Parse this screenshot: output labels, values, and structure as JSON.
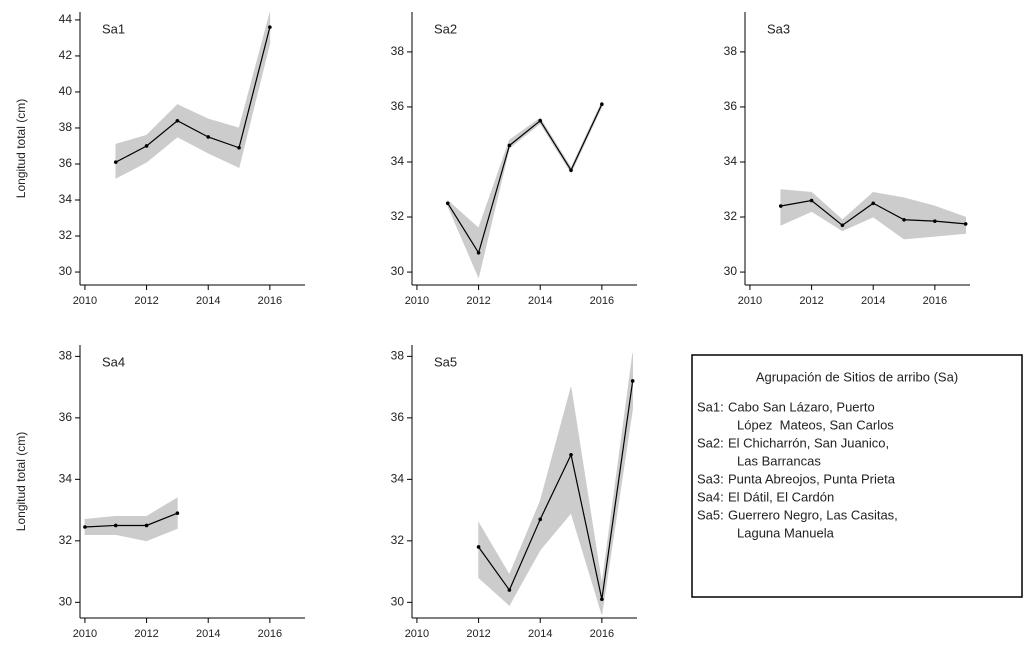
{
  "chart_data": [
    {
      "type": "line",
      "title": "Sa1",
      "y_label": "Longitud total (cm)",
      "x": [
        2011,
        2012,
        2013,
        2014,
        2015,
        2016
      ],
      "values": [
        36.1,
        37.0,
        38.4,
        37.5,
        36.9,
        43.6
      ],
      "lower": [
        35.2,
        36.1,
        37.5,
        36.6,
        35.8,
        42.7
      ],
      "upper": [
        37.1,
        37.6,
        39.3,
        38.5,
        38.0,
        44.4
      ],
      "color": "#000000",
      "band_color": "#cccccc",
      "xlim": [
        2009.84,
        2017.14
      ],
      "xticks": [
        2010,
        2012,
        2014,
        2016
      ],
      "ylim": [
        29.28,
        44.44
      ],
      "yticks": [
        30,
        32,
        34,
        36,
        38,
        40,
        42,
        44
      ]
    },
    {
      "type": "line",
      "title": "Sa2",
      "x": [
        2011,
        2012,
        2013,
        2014,
        2015,
        2016
      ],
      "values": [
        32.5,
        30.7,
        34.6,
        35.5,
        33.7,
        36.1
      ],
      "lower": [
        32.4,
        29.8,
        34.5,
        35.4,
        33.6,
        36.0
      ],
      "upper": [
        32.6,
        31.6,
        34.8,
        35.6,
        33.8,
        36.2
      ],
      "color": "#000000",
      "band_color": "#cccccc",
      "xlim": [
        2009.84,
        2017.14
      ],
      "xticks": [
        2010,
        2012,
        2014,
        2016
      ],
      "ylim": [
        29.53,
        39.45
      ],
      "yticks": [
        30,
        32,
        34,
        36,
        38
      ]
    },
    {
      "type": "line",
      "title": "Sa3",
      "x": [
        2011,
        2012,
        2013,
        2014,
        2015,
        2016,
        2017
      ],
      "values": [
        32.4,
        32.6,
        31.7,
        32.5,
        31.9,
        31.85,
        31.75
      ],
      "lower": [
        31.7,
        32.2,
        31.5,
        32.0,
        31.2,
        31.3,
        31.4
      ],
      "upper": [
        33.0,
        32.9,
        31.9,
        32.9,
        32.7,
        32.4,
        32.0
      ],
      "color": "#000000",
      "band_color": "#cccccc",
      "xlim": [
        2009.84,
        2017.14
      ],
      "xticks": [
        2010,
        2012,
        2014,
        2016
      ],
      "ylim": [
        29.53,
        39.45
      ],
      "yticks": [
        30,
        32,
        34,
        36,
        38
      ]
    },
    {
      "type": "line",
      "title": "Sa4",
      "y_label": "Longitud total (cm)",
      "x": [
        2010,
        2011,
        2012,
        2013
      ],
      "values": [
        32.45,
        32.5,
        32.5,
        32.9
      ],
      "lower": [
        32.2,
        32.2,
        32.0,
        32.4
      ],
      "upper": [
        32.7,
        32.8,
        32.8,
        33.4
      ],
      "color": "#000000",
      "band_color": "#cccccc",
      "xlim": [
        2009.84,
        2017.14
      ],
      "xticks": [
        2010,
        2012,
        2014,
        2016
      ],
      "ylim": [
        29.49,
        38.37
      ],
      "yticks": [
        30,
        32,
        34,
        36,
        38
      ]
    },
    {
      "type": "line",
      "title": "Sa5",
      "x": [
        2012,
        2013,
        2014,
        2015,
        2016,
        2017
      ],
      "values": [
        31.8,
        30.4,
        32.7,
        34.8,
        30.1,
        37.2
      ],
      "lower": [
        30.8,
        29.9,
        31.7,
        32.9,
        29.6,
        36.3
      ],
      "upper": [
        32.6,
        30.9,
        33.3,
        37.0,
        30.6,
        38.1
      ],
      "color": "#000000",
      "band_color": "#cccccc",
      "xlim": [
        2009.84,
        2017.14
      ],
      "xticks": [
        2010,
        2012,
        2014,
        2016
      ],
      "ylim": [
        29.49,
        38.37
      ],
      "yticks": [
        30,
        32,
        34,
        36,
        38
      ]
    }
  ],
  "site_legend": {
    "title": "Agrupación de Sitios de arribo (Sa)",
    "items": [
      {
        "label": "Sa1:",
        "lines": [
          "Cabo San Lázaro, Puerto",
          "López  Mateos, San Carlos"
        ]
      },
      {
        "label": "Sa2:",
        "lines": [
          "El Chicharrón, San Juanico,",
          "Las Barrancas"
        ]
      },
      {
        "label": "Sa3:",
        "lines": [
          "Punta Abreojos, Punta Prieta"
        ]
      },
      {
        "label": "Sa4:",
        "lines": [
          "El Dátil, El Cardón"
        ]
      },
      {
        "label": "Sa5:",
        "lines": [
          "Guerrero Negro, Las Casitas,",
          "Laguna Manuela"
        ]
      }
    ]
  }
}
